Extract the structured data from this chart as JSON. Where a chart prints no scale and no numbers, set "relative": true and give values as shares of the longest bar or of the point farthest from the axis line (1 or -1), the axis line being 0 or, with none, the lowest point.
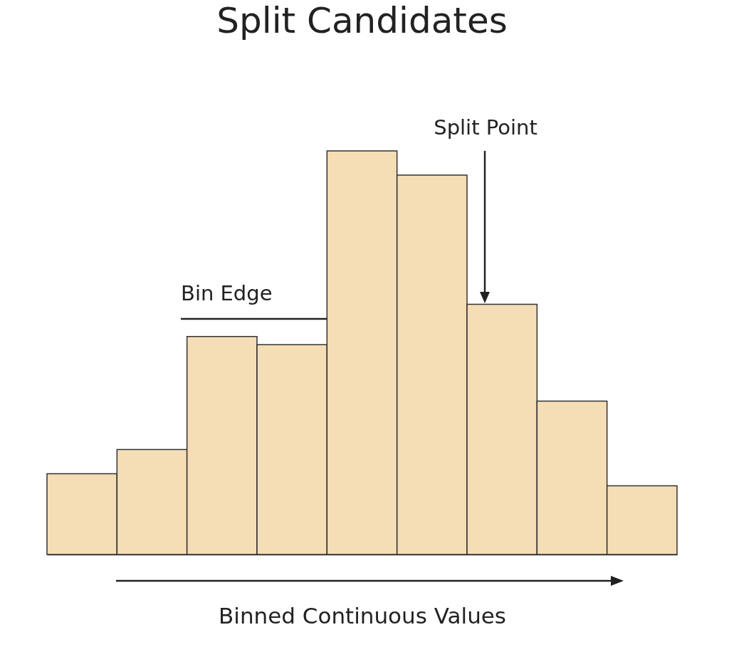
{
  "chart_data": {
    "type": "bar",
    "relative": true,
    "title": "Split Candidates",
    "xlabel": "Binned Continuous Values",
    "categories": [
      null,
      null,
      null,
      null,
      null,
      null,
      null,
      null,
      null
    ],
    "values": [
      0.2,
      0.26,
      0.54,
      0.52,
      1,
      0.94,
      0.62,
      0.38,
      0.17
    ],
    "color": "#f5ddb5",
    "annotations": [
      "Bin Edge",
      "Split Point"
    ]
  }
}
